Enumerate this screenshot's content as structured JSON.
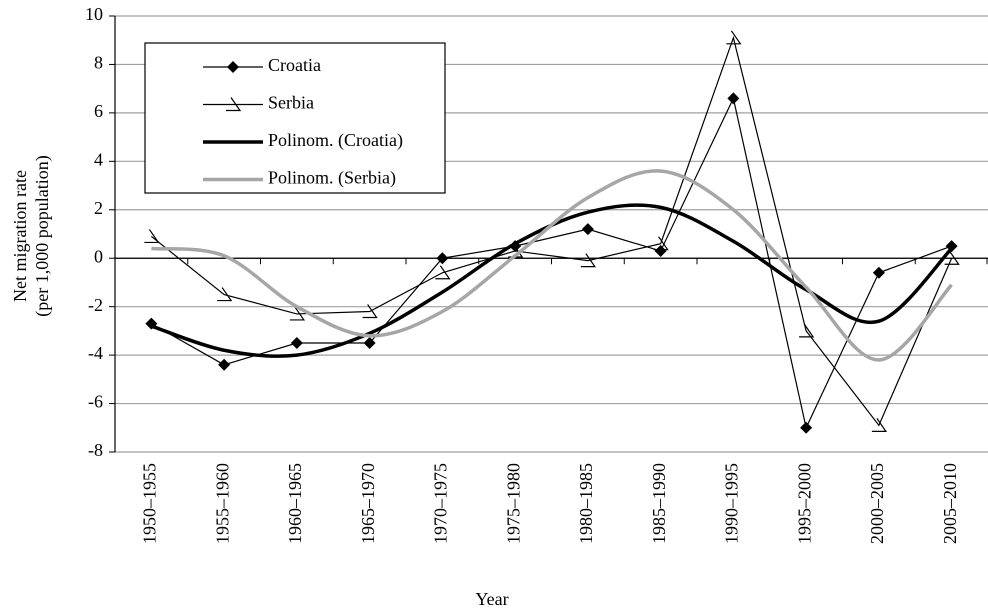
{
  "chart_data": {
    "type": "line",
    "x_label": "Year",
    "y_label": [
      "Net migration rate",
      "(per 1,000 population)"
    ],
    "categories": [
      "1950–1955",
      "1955–1960",
      "1960–1965",
      "1965–1970",
      "1970–1975",
      "1975–1980",
      "1980–1985",
      "1985–1990",
      "1990–1995",
      "1995–2000",
      "2000–2005",
      "2005–2010"
    ],
    "series": [
      {
        "name": "Croatia",
        "color": "#000000",
        "marker": "diamond",
        "smooth": false,
        "line_width": 1.2,
        "values": [
          -2.7,
          -4.4,
          -3.5,
          -3.5,
          0,
          0.5,
          1.2,
          0.3,
          6.6,
          -7.0,
          -0.6,
          0.5
        ]
      },
      {
        "name": "Serbia",
        "color": "#000000",
        "marker": "triangle",
        "smooth": false,
        "line_width": 1.2,
        "values": [
          0.9,
          -1.5,
          -2.3,
          -2.2,
          -0.6,
          0.3,
          -0.1,
          0.6,
          9.1,
          -3.0,
          -6.9,
          0.0
        ]
      },
      {
        "name": "Polinom. (Croatia)",
        "color": "#000000",
        "marker": null,
        "smooth": true,
        "line_width": 3.5,
        "values": [
          -2.8,
          -3.8,
          -4.0,
          -3.1,
          -1.4,
          0.6,
          1.9,
          2.1,
          0.7,
          -1.3,
          -2.6,
          0.4
        ]
      },
      {
        "name": "Polinom. (Serbia)",
        "color": "#a6a6a6",
        "marker": null,
        "smooth": true,
        "line_width": 3.5,
        "values": [
          0.4,
          0.1,
          -2.0,
          -3.2,
          -2.2,
          0.1,
          2.5,
          3.6,
          2.0,
          -1.2,
          -4.2,
          -1.1
        ]
      }
    ],
    "ylim": [
      -8,
      10
    ],
    "yticks": [
      -8,
      -6,
      -4,
      -2,
      0,
      2,
      4,
      6,
      8,
      10
    ],
    "grid": true
  }
}
